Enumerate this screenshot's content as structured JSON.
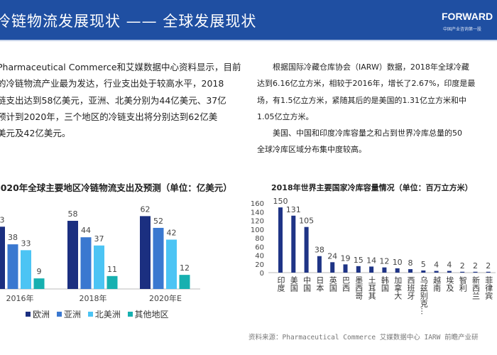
{
  "header": {
    "title": "冷链物流发展现状 —— 全球发展现状",
    "logo": "FORWARD",
    "logo_sub": "中国产业咨询第一股"
  },
  "left_text": [
    "Pharmaceutical Commerce和艾媒数据中心资料显示，目前",
    "的冷链物流产业最为发达，行业支出处于较高水平，2018",
    "链支出达到58亿美元，亚洲、北美分别为44亿美元、37亿",
    "预计到2020年，三个地区的冷链支出将分别达到62亿美",
    "美元及42亿美元。"
  ],
  "right_text": [
    "根据国际冷藏仓库协会（IARW）数据，2018年全球冷藏",
    "达到6.16亿立方米，相较于2016年，增长了2.67%，印度是最",
    "场，有1.5亿立方米，紧随其后的是美国的1.31亿立方米和中",
    "1.05亿立方米。",
    "美国、中国和印度冷库容量之和占到世界冷库总量的50",
    "全球冷库区域分布集中度较高。"
  ],
  "source": "资料来源：Pharmaceutical Commerce 艾媒数据中心 IARW 前瞻产业研",
  "chart_data": [
    {
      "type": "bar",
      "title": "2020年全球主要地区冷链物流支出及预测（单位：亿美元）",
      "categories": [
        "2016年",
        "2018年",
        "2020年E"
      ],
      "series": [
        {
          "name": "欧洲",
          "values": [
            53,
            58,
            62
          ],
          "color": "#1b2f80"
        },
        {
          "name": "亚洲",
          "values": [
            38,
            44,
            52
          ],
          "color": "#3a78d0"
        },
        {
          "name": "北美洲",
          "values": [
            33,
            37,
            42
          ],
          "color": "#4cc4f4"
        },
        {
          "name": "其他地区",
          "values": [
            9,
            11,
            12
          ],
          "color": "#17b0b0"
        }
      ],
      "legend": "bottom",
      "grid": false
    },
    {
      "type": "bar",
      "title": "2018年世界主要国家冷库容量情况（单位：百万立方米）",
      "categories": [
        "印度",
        "美国",
        "中国",
        "日本",
        "英国",
        "巴西",
        "墨西哥",
        "土耳其",
        "韩国",
        "加拿大",
        "西班牙",
        "乌兹别克...",
        "越南",
        "埃及",
        "智利",
        "新西兰",
        "菲律宾"
      ],
      "values": [
        150,
        131,
        105,
        38,
        24,
        19,
        15,
        14,
        12,
        10,
        8,
        5,
        4,
        4,
        2,
        2,
        2
      ],
      "ylim": [
        0,
        160
      ],
      "yticks": [
        "0",
        "20",
        "40",
        "60",
        "80",
        "100",
        "120",
        "140",
        "160"
      ],
      "color": "#1f3486",
      "grid": false
    }
  ]
}
